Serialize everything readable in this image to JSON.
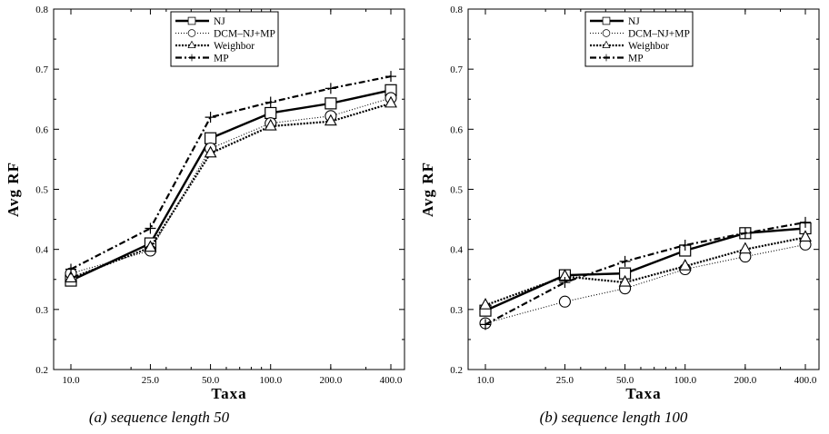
{
  "chart_data": [
    {
      "type": "line",
      "caption": "(a) sequence length 50",
      "xlabel": "Taxa",
      "ylabel": "Avg RF",
      "xscale": "log",
      "ylim": [
        0.2,
        0.8
      ],
      "x": [
        10,
        25,
        50,
        100,
        200,
        400
      ],
      "xticklabels": [
        "10.0",
        "25.0",
        "50.0",
        "100.0",
        "200.0",
        "400.0"
      ],
      "yticks": [
        0.2,
        0.3,
        0.4,
        0.5,
        0.6,
        0.7,
        0.8
      ],
      "yticklabels": [
        "0.2",
        "0.3",
        "0.4",
        "0.5",
        "0.6",
        "0.7",
        "0.8"
      ],
      "legend_position": "top-center",
      "series": [
        {
          "name": "NJ",
          "marker": "square",
          "style": "solid",
          "values": [
            0.348,
            0.41,
            0.585,
            0.627,
            0.643,
            0.665
          ]
        },
        {
          "name": "DCM–NJ+MP",
          "marker": "circle",
          "style": "dotted",
          "values": [
            0.36,
            0.398,
            0.568,
            0.61,
            0.622,
            0.652
          ]
        },
        {
          "name": "Weighbor",
          "marker": "triangle",
          "style": "dense-dotted",
          "values": [
            0.352,
            0.403,
            0.56,
            0.605,
            0.613,
            0.643
          ]
        },
        {
          "name": "MP",
          "marker": "plus",
          "style": "dash-dot",
          "values": [
            0.367,
            0.435,
            0.62,
            0.645,
            0.668,
            0.688
          ]
        }
      ]
    },
    {
      "type": "line",
      "caption": "(b) sequence length 100",
      "xlabel": "Taxa",
      "ylabel": "Avg RF",
      "xscale": "log",
      "ylim": [
        0.2,
        0.8
      ],
      "x": [
        10,
        25,
        50,
        100,
        200,
        400
      ],
      "xticklabels": [
        "10.0",
        "25.0",
        "50.0",
        "100.0",
        "200.0",
        "400.0"
      ],
      "yticks": [
        0.2,
        0.3,
        0.4,
        0.5,
        0.6,
        0.7,
        0.8
      ],
      "yticklabels": [
        "0.2",
        "0.3",
        "0.4",
        "0.5",
        "0.6",
        "0.7",
        "0.8"
      ],
      "legend_position": "top-center",
      "series": [
        {
          "name": "NJ",
          "marker": "square",
          "style": "solid",
          "values": [
            0.298,
            0.357,
            0.36,
            0.398,
            0.427,
            0.435
          ]
        },
        {
          "name": "DCM–NJ+MP",
          "marker": "circle",
          "style": "dotted",
          "values": [
            0.277,
            0.313,
            0.335,
            0.367,
            0.388,
            0.408
          ]
        },
        {
          "name": "Weighbor",
          "marker": "triangle",
          "style": "dense-dotted",
          "values": [
            0.307,
            0.355,
            0.345,
            0.372,
            0.4,
            0.42
          ]
        },
        {
          "name": "MP",
          "marker": "plus",
          "style": "dash-dot",
          "values": [
            0.275,
            0.345,
            0.38,
            0.407,
            0.427,
            0.445
          ]
        }
      ]
    }
  ]
}
